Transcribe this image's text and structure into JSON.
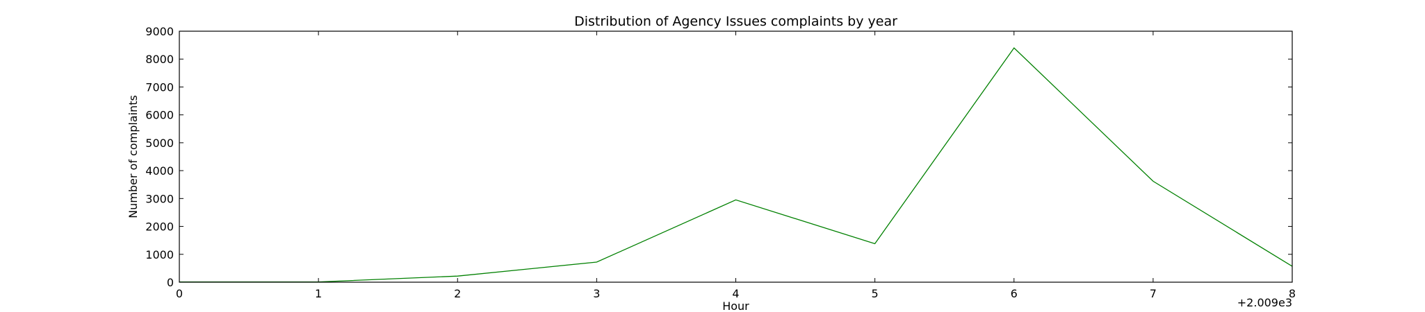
{
  "chart_data": {
    "type": "line",
    "title": "Distribution of  Agency Issues complaints by year",
    "xlabel": "Hour",
    "ylabel": "Number of complaints",
    "x_offset_label": "+2.009e3",
    "xlim": [
      0,
      8
    ],
    "ylim": [
      0,
      9000
    ],
    "x_ticks": [
      0,
      1,
      2,
      3,
      4,
      5,
      6,
      7,
      8
    ],
    "y_ticks": [
      0,
      1000,
      2000,
      3000,
      4000,
      5000,
      6000,
      7000,
      8000,
      9000
    ],
    "grid": false,
    "line_color": "#008000",
    "series": [
      {
        "x": [
          0,
          1,
          2,
          3,
          4,
          5,
          6,
          7,
          8
        ],
        "values": [
          10,
          10,
          220,
          720,
          2950,
          1380,
          8400,
          3620,
          570
        ]
      }
    ]
  }
}
